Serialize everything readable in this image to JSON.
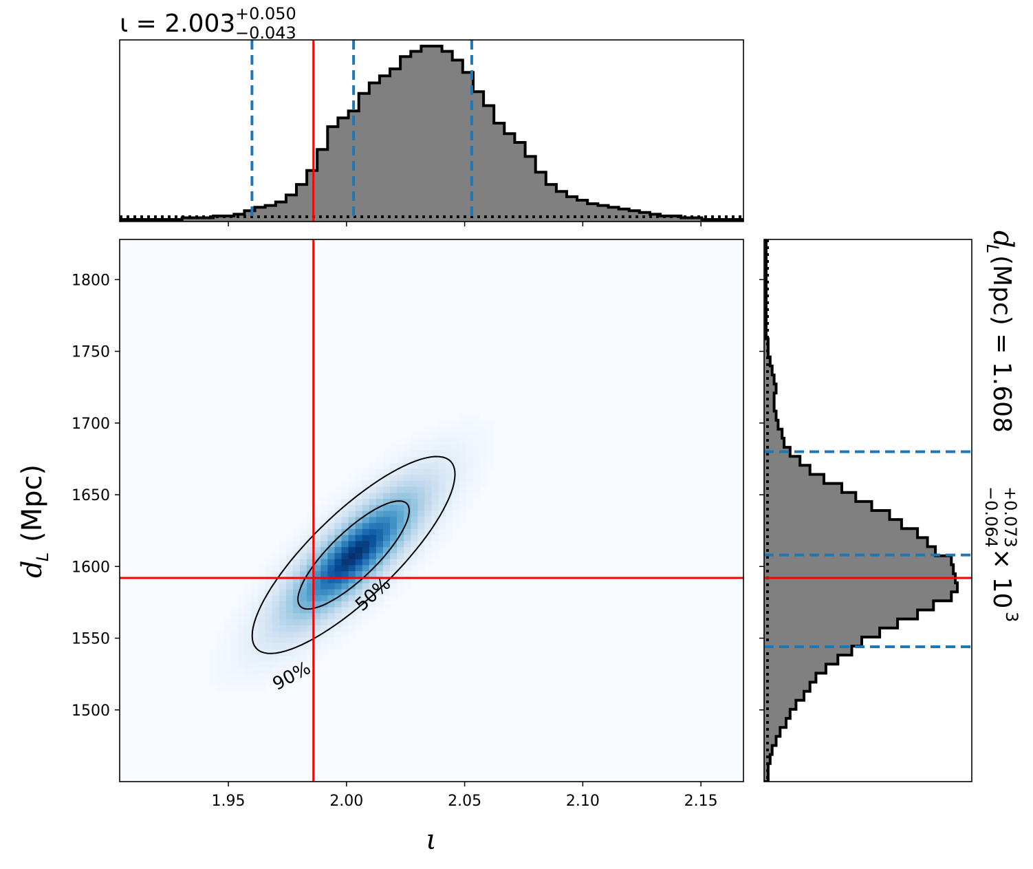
{
  "chart_data": {
    "type": "corner_plot",
    "parameters": {
      "x": {
        "symbol": "ι",
        "median": 2.003,
        "plus": "+0.050",
        "minus": "−0.043",
        "truth": 1.986,
        "quantiles": [
          1.96,
          2.003,
          2.053
        ]
      },
      "y": {
        "symbol": "d",
        "subscript": "L",
        "unit": "(Mpc)",
        "median_display": "1.608",
        "plus": "+0.073",
        "minus": "−0.064",
        "scale_text": "× 10",
        "scale_exp": "3",
        "median": 1608,
        "truth": 1592,
        "quantiles": [
          1544,
          1608,
          1680
        ]
      }
    },
    "top_title": {
      "lhs": "ι = 2.003",
      "sup": "+0.050",
      "sub": "−0.043"
    },
    "right_title": {
      "lhs": "d",
      "sub_L": "L",
      "mid": " (Mpc) = 1.608",
      "sup": "+0.073",
      "sub": "−0.064",
      "tail": " × 10",
      "exp": "3"
    },
    "xlabel": "ι",
    "ylabel": {
      "main": "d",
      "sub": "L",
      "unit": "(Mpc)"
    },
    "xlim": [
      1.904,
      2.168
    ],
    "ylim": [
      1450,
      1828
    ],
    "xticks": [
      1.95,
      2.0,
      2.05,
      2.1,
      2.15
    ],
    "xtick_labels": [
      "1.95",
      "2.00",
      "2.05",
      "2.10",
      "2.15"
    ],
    "yticks": [
      1500,
      1550,
      1600,
      1650,
      1700,
      1750,
      1800
    ],
    "ytick_labels": [
      "1500",
      "1550",
      "1600",
      "1650",
      "1700",
      "1750",
      "1800"
    ],
    "contour_labels": [
      "50%",
      "90%"
    ],
    "top_hist": {
      "edges_start": 1.904,
      "bin_width": 0.0044,
      "heights": [
        0.0,
        0.0,
        0.0,
        0.0,
        0.0,
        0.0,
        0.01,
        0.01,
        0.01,
        0.02,
        0.02,
        0.03,
        0.05,
        0.07,
        0.08,
        0.1,
        0.14,
        0.2,
        0.28,
        0.4,
        0.53,
        0.58,
        0.62,
        0.72,
        0.78,
        0.82,
        0.86,
        0.93,
        0.96,
        0.99,
        0.99,
        0.96,
        0.91,
        0.84,
        0.73,
        0.65,
        0.55,
        0.49,
        0.44,
        0.36,
        0.27,
        0.2,
        0.16,
        0.13,
        0.11,
        0.09,
        0.08,
        0.07,
        0.06,
        0.05,
        0.04,
        0.03,
        0.02,
        0.02,
        0.01,
        0.01,
        0.0,
        0.0,
        0.0,
        0.0
      ]
    },
    "right_hist": {
      "edges_start": 1450,
      "bin_width": 6.3,
      "widths": [
        0.01,
        0.01,
        0.02,
        0.03,
        0.05,
        0.07,
        0.1,
        0.12,
        0.15,
        0.19,
        0.22,
        0.25,
        0.3,
        0.36,
        0.43,
        0.48,
        0.57,
        0.66,
        0.76,
        0.84,
        0.93,
        0.96,
        0.95,
        0.94,
        0.93,
        0.85,
        0.81,
        0.76,
        0.68,
        0.62,
        0.53,
        0.45,
        0.38,
        0.29,
        0.22,
        0.17,
        0.12,
        0.09,
        0.08,
        0.06,
        0.05,
        0.04,
        0.04,
        0.05,
        0.04,
        0.03,
        0.02,
        0.01,
        0.01,
        0.0,
        0.0,
        0.0,
        0.0,
        0.0,
        0.0,
        0.0,
        0.0,
        0.0,
        0.0,
        0.0
      ]
    },
    "kde": {
      "mean_x": 2.003,
      "mean_y": 1608,
      "sd_x": 0.02,
      "sd_y": 32,
      "corr": 0.82
    },
    "colors": {
      "hist_fill": "#808080",
      "hist_edge": "#000000",
      "quantile_line": "#1f77b4",
      "truth_line": "#ff0000",
      "cmap_low": "#f7fbff",
      "cmap_high": "#08306b"
    }
  }
}
